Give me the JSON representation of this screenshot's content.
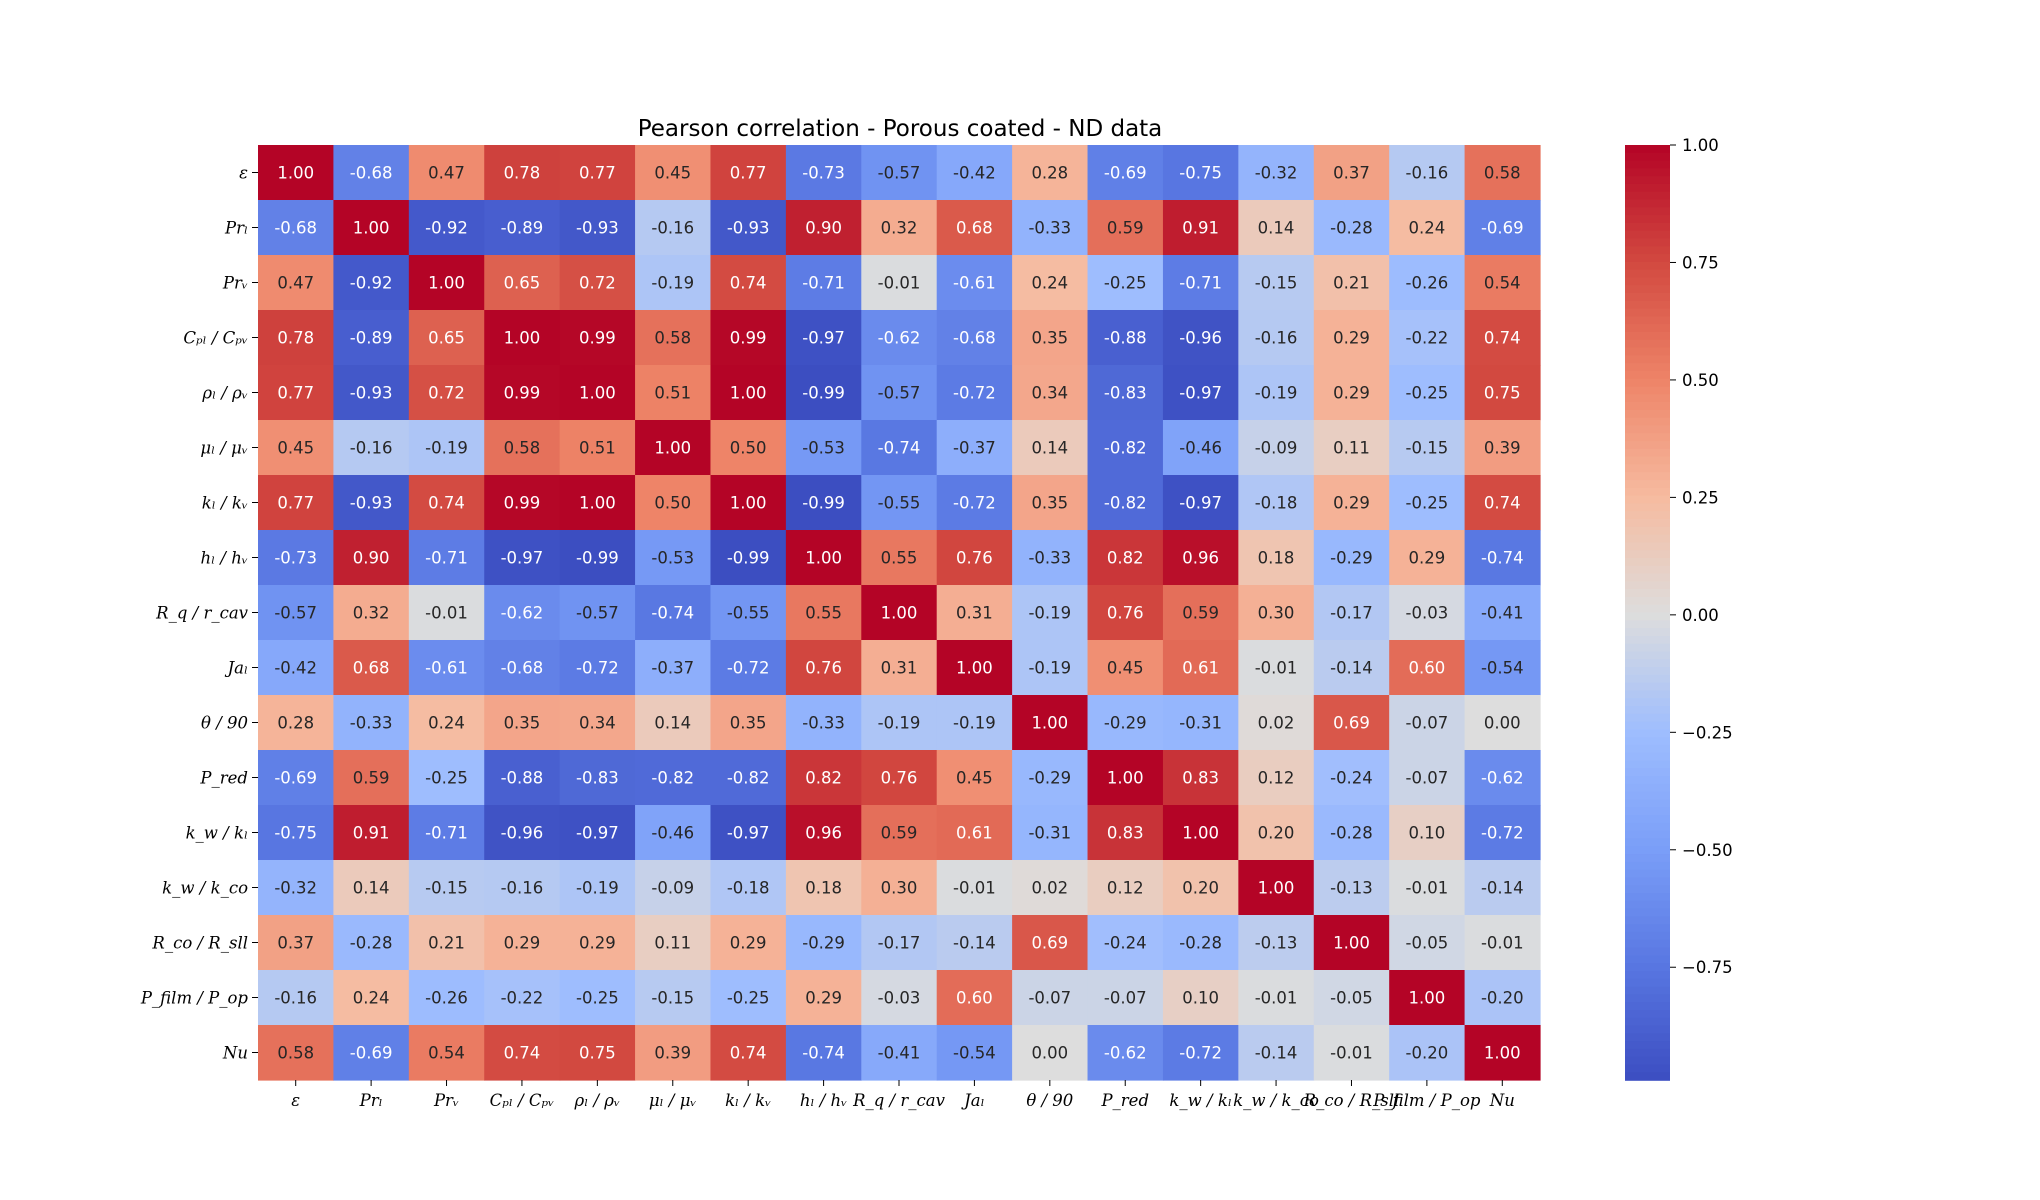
{
  "chart_data": {
    "type": "heatmap",
    "title": "Pearson correlation - Porous coated - ND data",
    "labels": [
      "ε",
      "Prₗ",
      "Prᵥ",
      "Cₚₗ / Cₚᵥ",
      "ρₗ / ρᵥ",
      "μₗ / μᵥ",
      "kₗ / kᵥ",
      "hₗ / hᵥ",
      "R_q / r_cav",
      "Jaₗ",
      "θ / 90",
      "P_red",
      "k_w / kₗ",
      "k_w / k_co",
      "R_co / R_sll",
      "P_film / P_op",
      "Nu"
    ],
    "matrix": [
      [
        1.0,
        -0.68,
        0.47,
        0.78,
        0.77,
        0.45,
        0.77,
        -0.73,
        -0.57,
        -0.42,
        0.28,
        -0.69,
        -0.75,
        -0.32,
        0.37,
        -0.16,
        0.58
      ],
      [
        -0.68,
        1.0,
        -0.92,
        -0.89,
        -0.93,
        -0.16,
        -0.93,
        0.9,
        0.32,
        0.68,
        -0.33,
        0.59,
        0.91,
        0.14,
        -0.28,
        0.24,
        -0.69
      ],
      [
        0.47,
        -0.92,
        1.0,
        0.65,
        0.72,
        -0.19,
        0.74,
        -0.71,
        -0.01,
        -0.61,
        0.24,
        -0.25,
        -0.71,
        -0.15,
        0.21,
        -0.26,
        0.54
      ],
      [
        0.78,
        -0.89,
        0.65,
        1.0,
        0.99,
        0.58,
        0.99,
        -0.97,
        -0.62,
        -0.68,
        0.35,
        -0.88,
        -0.96,
        -0.16,
        0.29,
        -0.22,
        0.74
      ],
      [
        0.77,
        -0.93,
        0.72,
        0.99,
        1.0,
        0.51,
        1.0,
        -0.99,
        -0.57,
        -0.72,
        0.34,
        -0.83,
        -0.97,
        -0.19,
        0.29,
        -0.25,
        0.75
      ],
      [
        0.45,
        -0.16,
        -0.19,
        0.58,
        0.51,
        1.0,
        0.5,
        -0.53,
        -0.74,
        -0.37,
        0.14,
        -0.82,
        -0.46,
        -0.09,
        0.11,
        -0.15,
        0.39
      ],
      [
        0.77,
        -0.93,
        0.74,
        0.99,
        1.0,
        0.5,
        1.0,
        -0.99,
        -0.55,
        -0.72,
        0.35,
        -0.82,
        -0.97,
        -0.18,
        0.29,
        -0.25,
        0.74
      ],
      [
        -0.73,
        0.9,
        -0.71,
        -0.97,
        -0.99,
        -0.53,
        -0.99,
        1.0,
        0.55,
        0.76,
        -0.33,
        0.82,
        0.96,
        0.18,
        -0.29,
        0.29,
        -0.74
      ],
      [
        -0.57,
        0.32,
        -0.01,
        -0.62,
        -0.57,
        -0.74,
        -0.55,
        0.55,
        1.0,
        0.31,
        -0.19,
        0.76,
        0.59,
        0.3,
        -0.17,
        -0.03,
        -0.41
      ],
      [
        -0.42,
        0.68,
        -0.61,
        -0.68,
        -0.72,
        -0.37,
        -0.72,
        0.76,
        0.31,
        1.0,
        -0.19,
        0.45,
        0.61,
        -0.01,
        -0.14,
        0.6,
        -0.54
      ],
      [
        0.28,
        -0.33,
        0.24,
        0.35,
        0.34,
        0.14,
        0.35,
        -0.33,
        -0.19,
        -0.19,
        1.0,
        -0.29,
        -0.31,
        0.02,
        0.69,
        -0.07,
        0.0
      ],
      [
        -0.69,
        0.59,
        -0.25,
        -0.88,
        -0.83,
        -0.82,
        -0.82,
        0.82,
        0.76,
        0.45,
        -0.29,
        1.0,
        0.83,
        0.12,
        -0.24,
        -0.07,
        -0.62
      ],
      [
        -0.75,
        0.91,
        -0.71,
        -0.96,
        -0.97,
        -0.46,
        -0.97,
        0.96,
        0.59,
        0.61,
        -0.31,
        0.83,
        1.0,
        0.2,
        -0.28,
        0.1,
        -0.72
      ],
      [
        -0.32,
        0.14,
        -0.15,
        -0.16,
        -0.19,
        -0.09,
        -0.18,
        0.18,
        0.3,
        -0.01,
        0.02,
        0.12,
        0.2,
        1.0,
        -0.13,
        -0.01,
        -0.14
      ],
      [
        0.37,
        -0.28,
        0.21,
        0.29,
        0.29,
        0.11,
        0.29,
        -0.29,
        -0.17,
        -0.14,
        0.69,
        -0.24,
        -0.28,
        -0.13,
        1.0,
        -0.05,
        -0.01
      ],
      [
        -0.16,
        0.24,
        -0.26,
        -0.22,
        -0.25,
        -0.15,
        -0.25,
        0.29,
        -0.03,
        0.6,
        -0.07,
        -0.07,
        0.1,
        -0.01,
        -0.05,
        1.0,
        -0.2
      ],
      [
        0.58,
        -0.69,
        0.54,
        0.74,
        0.75,
        0.39,
        0.74,
        -0.74,
        -0.41,
        -0.54,
        0.0,
        -0.62,
        -0.72,
        -0.14,
        -0.01,
        -0.2,
        1.0
      ]
    ],
    "value_range": [
      -1.0,
      1.0
    ],
    "colormap": "coolwarm",
    "colorbar_ticks": [
      1.0,
      0.75,
      0.5,
      0.25,
      0.0,
      -0.25,
      -0.5,
      -0.75
    ],
    "colorbar_tick_labels": [
      "1.00",
      "0.75",
      "0.50",
      "0.25",
      "0.00",
      "−0.25",
      "−0.50",
      "−0.75"
    ],
    "colorbar_range": [
      -0.99,
      1.0
    ],
    "grid": false,
    "legend": "colorbar-right"
  }
}
